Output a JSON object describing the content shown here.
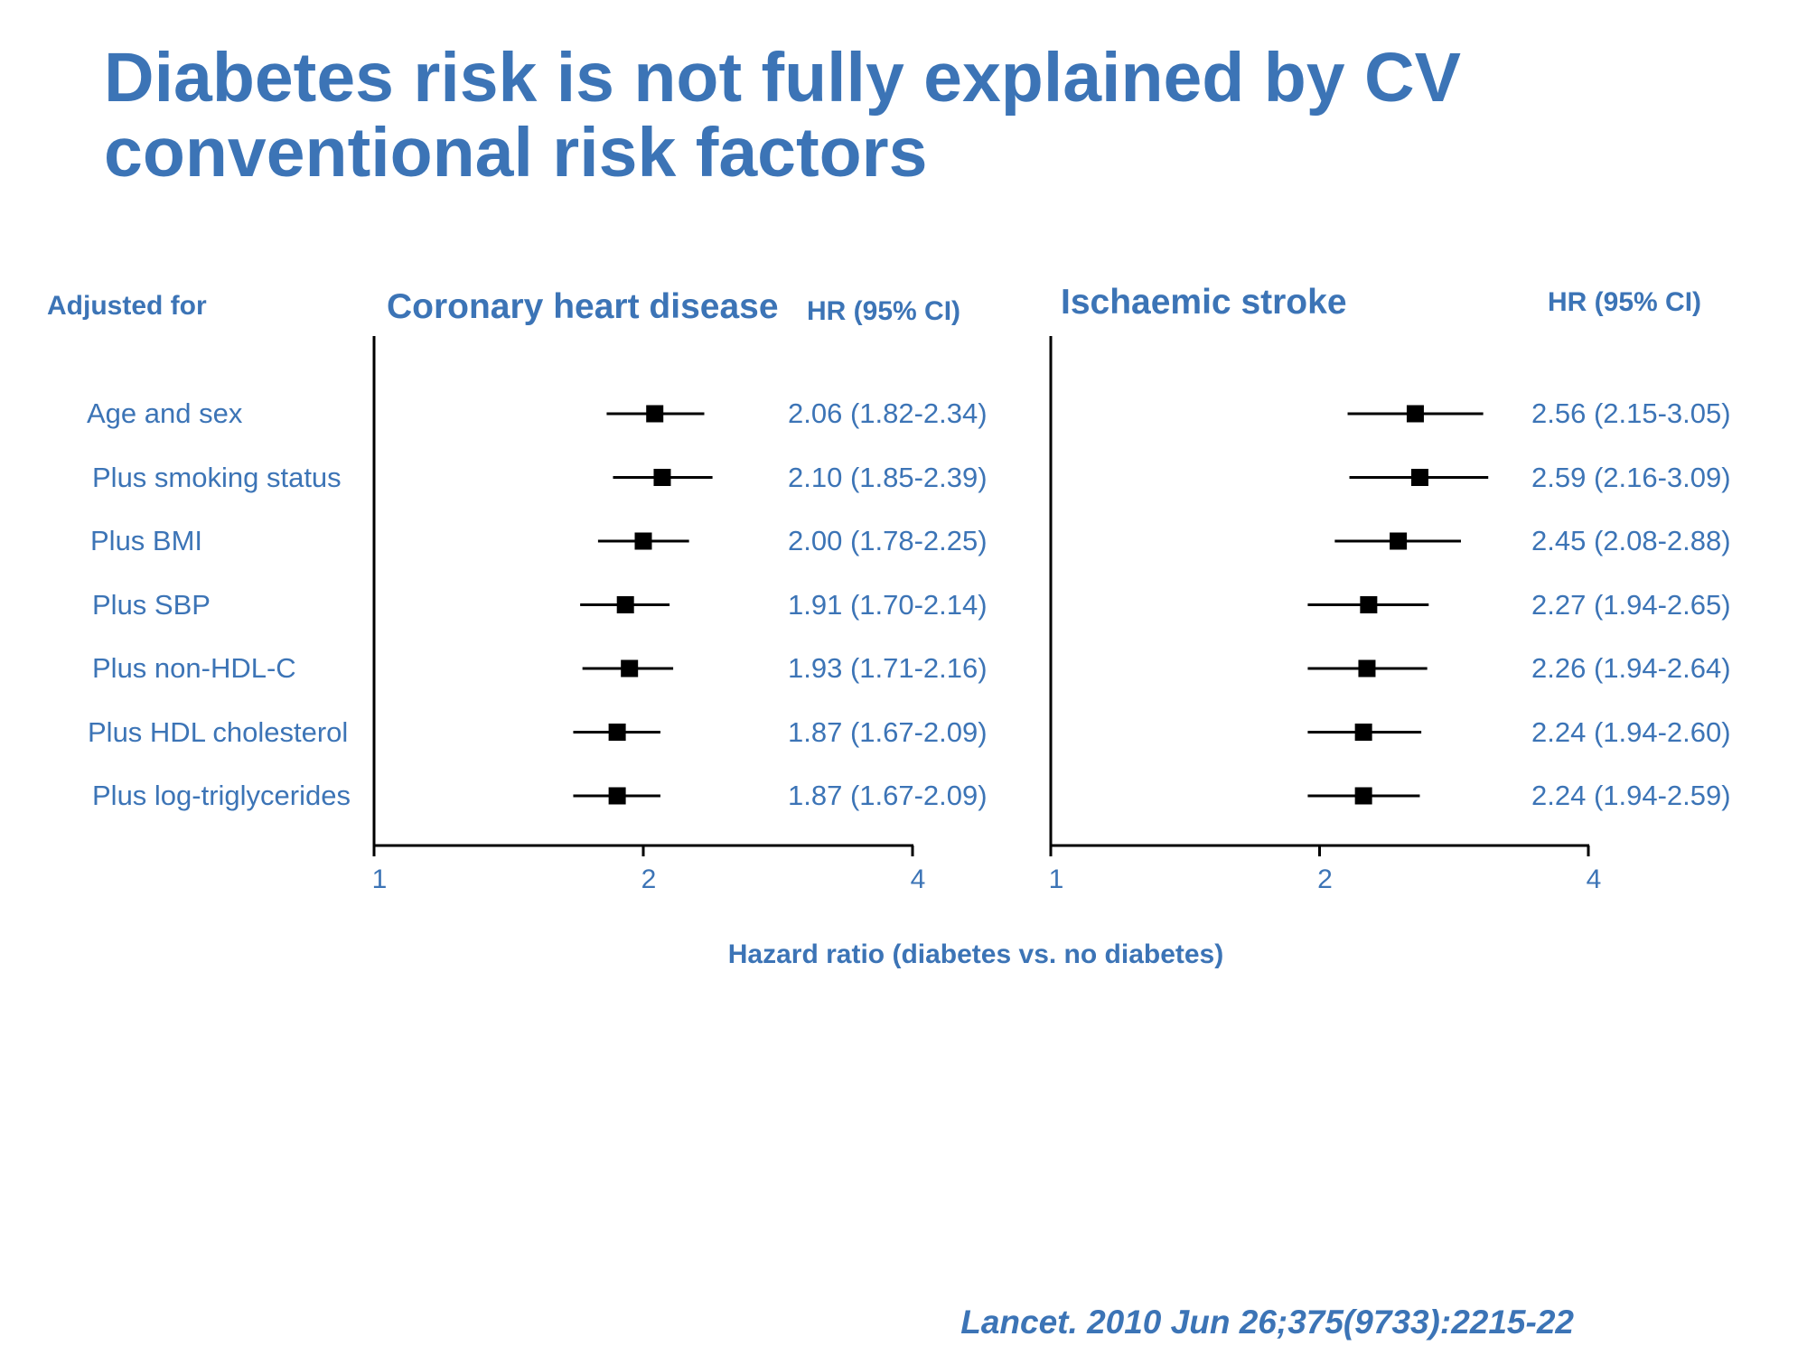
{
  "title": "Diabetes risk is not fully explained by CV conventional risk factors",
  "row_header": "Adjusted for",
  "hr_header": "HR (95% CI)",
  "x_axis_title": "Hazard ratio (diabetes vs. no diabetes)",
  "citation": "Lancet. 2010 Jun 26;375(9733):2215-22",
  "colors": {
    "text": "#3c74b6",
    "marks": "#000000"
  },
  "chart_data": [
    {
      "type": "forest",
      "title": "Coronary heart disease",
      "xlabel": "Hazard ratio (diabetes vs. no diabetes)",
      "xscale": "log",
      "xlim": [
        1,
        4
      ],
      "xticks": [
        "1",
        "2",
        "4"
      ],
      "categories": [
        "Age and sex",
        "Plus smoking status",
        "Plus BMI",
        "Plus SBP",
        "Plus non-HDL-C",
        "Plus HDL cholesterol",
        "Plus log-triglycerides"
      ],
      "hr": [
        2.06,
        2.1,
        2.0,
        1.91,
        1.93,
        1.87,
        1.87
      ],
      "ci_low": [
        1.82,
        1.85,
        1.78,
        1.7,
        1.71,
        1.67,
        1.67
      ],
      "ci_high": [
        2.34,
        2.39,
        2.25,
        2.14,
        2.16,
        2.09,
        2.09
      ],
      "labels": [
        "2.06 (1.82-2.34)",
        "2.10 (1.85-2.39)",
        "2.00 (1.78-2.25)",
        "1.91 (1.70-2.14)",
        "1.93 (1.71-2.16)",
        "1.87 (1.67-2.09)",
        "1.87 (1.67-2.09)"
      ]
    },
    {
      "type": "forest",
      "title": "Ischaemic stroke",
      "xlabel": "Hazard ratio (diabetes vs. no diabetes)",
      "xscale": "log",
      "xlim": [
        1,
        4
      ],
      "xticks": [
        "1",
        "2",
        "4"
      ],
      "categories": [
        "Age and sex",
        "Plus smoking status",
        "Plus BMI",
        "Plus SBP",
        "Plus non-HDL-C",
        "Plus HDL cholesterol",
        "Plus log-triglycerides"
      ],
      "hr": [
        2.56,
        2.59,
        2.45,
        2.27,
        2.26,
        2.24,
        2.24
      ],
      "ci_low": [
        2.15,
        2.16,
        2.08,
        1.94,
        1.94,
        1.94,
        1.94
      ],
      "ci_high": [
        3.05,
        3.09,
        2.88,
        2.65,
        2.64,
        2.6,
        2.59
      ],
      "labels": [
        "2.56 (2.15-3.05)",
        "2.59 (2.16-3.09)",
        "2.45 (2.08-2.88)",
        "2.27 (1.94-2.65)",
        "2.26 (1.94-2.64)",
        "2.24 (1.94-2.60)",
        "2.24 (1.94-2.59)"
      ]
    }
  ]
}
